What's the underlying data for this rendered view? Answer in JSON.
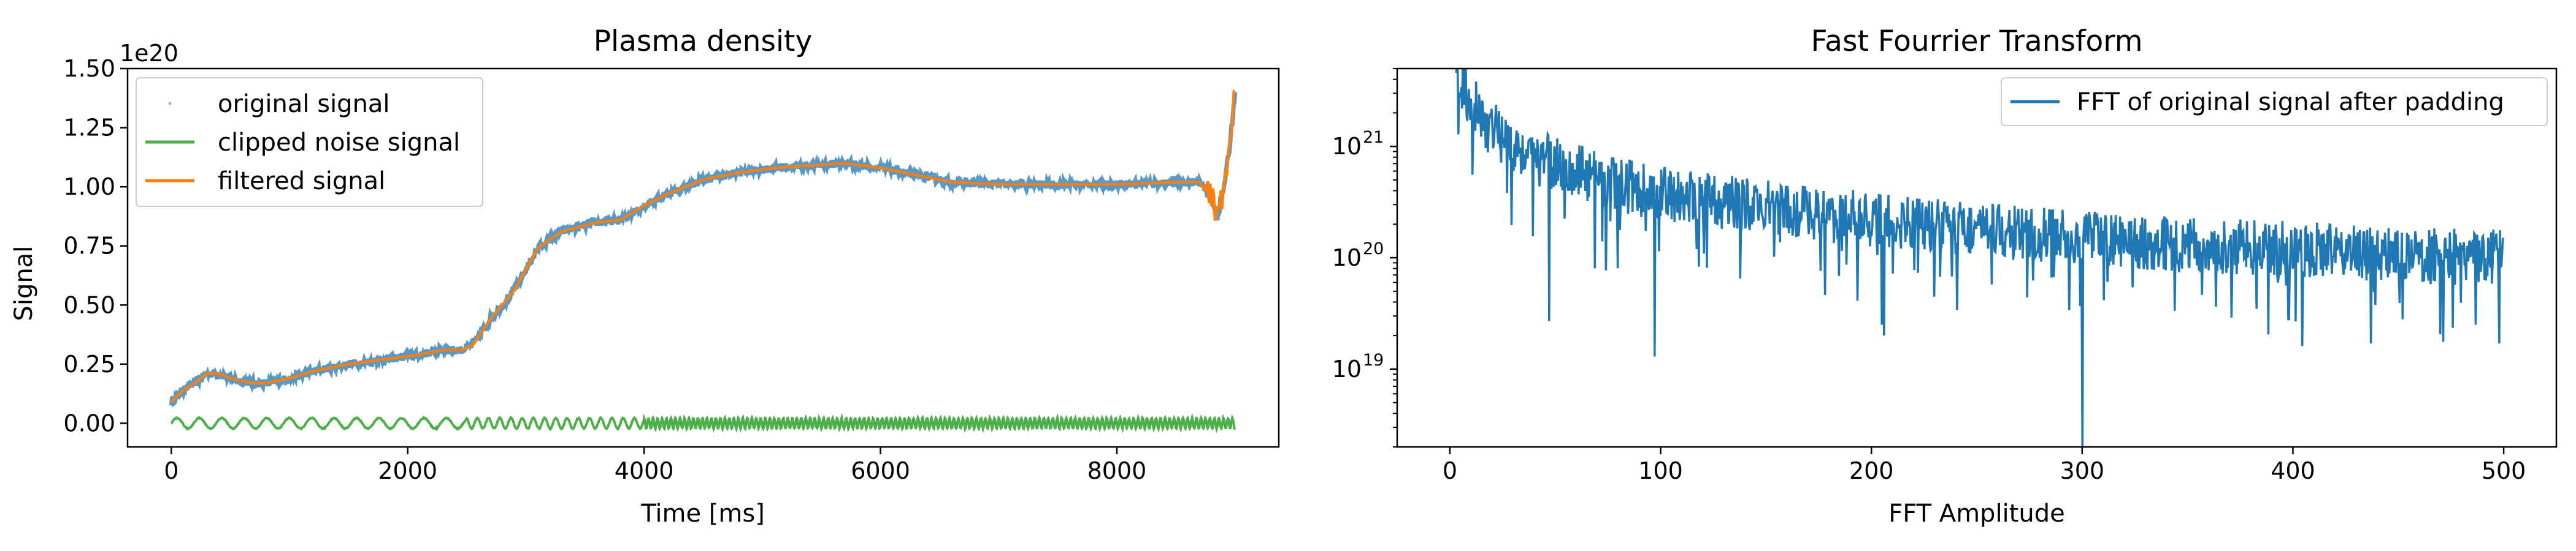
{
  "colors": {
    "original": "#1f77b4",
    "noise": "#4daf4a",
    "filtered": "#ff7f0e",
    "fft": "#1f77b4"
  },
  "chart_data": [
    {
      "type": "line",
      "title": "Plasma density",
      "xlabel": "Time [ms]",
      "ylabel": "Signal",
      "y_multiplier_label": "1e20",
      "xlim": [
        -370,
        9370
      ],
      "ylim": [
        -0.1,
        1.5
      ],
      "xticks": [
        0,
        2000,
        4000,
        6000,
        8000
      ],
      "xtick_labels": [
        "0",
        "2000",
        "4000",
        "6000",
        "8000"
      ],
      "yticks": [
        0.0,
        0.25,
        0.5,
        0.75,
        1.0,
        1.25,
        1.5
      ],
      "ytick_labels": [
        "0.00",
        "0.25",
        "0.50",
        "0.75",
        "1.00",
        "1.25",
        "1.50"
      ],
      "grid": false,
      "legend_position": "top-left",
      "series": [
        {
          "name": "original signal",
          "style": "dots",
          "x": [
            0,
            100,
            200,
            300,
            400,
            500,
            600,
            700,
            800,
            1000,
            1200,
            1500,
            1800,
            2100,
            2300,
            2450,
            2550,
            2700,
            2900,
            3100,
            3300,
            3600,
            3800,
            4000,
            4200,
            4500,
            4800,
            5100,
            5400,
            5700,
            6000,
            6300,
            6600,
            7000,
            7500,
            8000,
            8500,
            8700,
            8800,
            8850,
            8900,
            8950,
            9000
          ],
          "y": [
            0.09,
            0.14,
            0.17,
            0.21,
            0.21,
            0.19,
            0.18,
            0.17,
            0.17,
            0.19,
            0.22,
            0.25,
            0.27,
            0.29,
            0.31,
            0.31,
            0.33,
            0.44,
            0.56,
            0.74,
            0.81,
            0.85,
            0.86,
            0.92,
            0.97,
            1.03,
            1.06,
            1.08,
            1.09,
            1.1,
            1.08,
            1.05,
            1.02,
            1.01,
            1.01,
            1.01,
            1.02,
            1.02,
            0.95,
            0.87,
            0.98,
            1.15,
            1.4
          ]
        },
        {
          "name": "clipped noise signal",
          "style": "oscillation",
          "x_start": 0,
          "x_end": 9000,
          "amplitude": 0.022,
          "center": 0.0
        },
        {
          "name": "filtered signal",
          "style": "line",
          "x": [
            0,
            100,
            200,
            300,
            400,
            500,
            600,
            700,
            800,
            1000,
            1200,
            1500,
            1800,
            2100,
            2300,
            2450,
            2550,
            2700,
            2900,
            3100,
            3300,
            3600,
            3800,
            4000,
            4200,
            4500,
            4800,
            5100,
            5400,
            5700,
            6000,
            6300,
            6600,
            7000,
            7500,
            8000,
            8500,
            8700,
            8800,
            8850,
            8900,
            8950,
            9000
          ],
          "y": [
            0.09,
            0.14,
            0.17,
            0.21,
            0.21,
            0.19,
            0.18,
            0.17,
            0.17,
            0.19,
            0.22,
            0.25,
            0.27,
            0.29,
            0.31,
            0.31,
            0.33,
            0.44,
            0.56,
            0.74,
            0.81,
            0.85,
            0.86,
            0.92,
            0.97,
            1.03,
            1.06,
            1.08,
            1.09,
            1.1,
            1.08,
            1.05,
            1.02,
            1.01,
            1.01,
            1.01,
            1.02,
            1.02,
            0.95,
            0.87,
            0.98,
            1.15,
            1.4
          ]
        }
      ]
    },
    {
      "type": "line",
      "title": "Fast Fourrier Transform",
      "xlabel": "FFT Amplitude",
      "ylabel": "",
      "yscale": "log",
      "xlim": [
        -25,
        525
      ],
      "ylim": [
        2e+18,
        5e+21
      ],
      "xticks": [
        0,
        100,
        200,
        300,
        400,
        500
      ],
      "xtick_labels": [
        "0",
        "100",
        "200",
        "300",
        "400",
        "500"
      ],
      "yticks": [
        1e+19,
        1e+20,
        1e+21
      ],
      "ytick_labels": [
        "10",
        "10",
        "10"
      ],
      "ytick_exponents": [
        "19",
        "20",
        "21"
      ],
      "grid": false,
      "legend_position": "top-right",
      "series": [
        {
          "name": "FFT of original signal after padding",
          "style": "noisy-line",
          "envelope_x": [
            3,
            10,
            20,
            40,
            60,
            80,
            100,
            150,
            200,
            250,
            300,
            350,
            400,
            450,
            500
          ],
          "envelope_y": [
            5e+21,
            2.5e+21,
            1.4e+21,
            8e+20,
            6e+20,
            4.6e+20,
            3.8e+20,
            2.8e+20,
            2.2e+20,
            1.8e+20,
            1.5e+20,
            1.3e+20,
            1.2e+20,
            1.05e+20,
            1e+20
          ],
          "dips": [
            [
              47,
              2.7e+19
            ],
            [
              97,
              1.3e+19
            ],
            [
              205,
              2.5e+19
            ],
            [
              206,
              2e+19
            ],
            [
              300,
              1.5e+18
            ],
            [
              398,
              2.8e+19
            ],
            [
              437,
              1.7e+19
            ],
            [
              498,
              1.7e+19
            ]
          ]
        }
      ]
    }
  ]
}
